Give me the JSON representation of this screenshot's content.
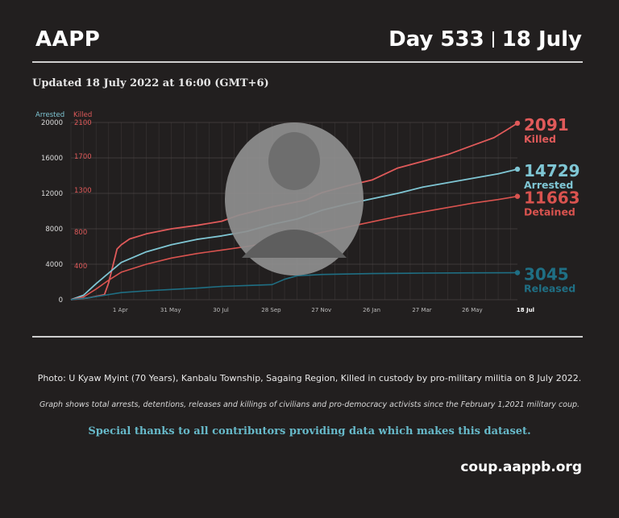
{
  "header": {
    "brand": "AAPP",
    "day": "Day 533",
    "date": "18 July"
  },
  "updated": "Updated 18 July 2022 at 16:00 (GMT+6)",
  "photo_caption": "Photo:  U Kyaw Myint (70 Years), Kanbalu Township, Sagaing Region, Killed in custody by pro-military militia on 8 July  2022.",
  "graph_caption": "Graph shows total arrests, detentions, releases and killings of civilians and pro-democracy activists since the February 1,2021 military coup.",
  "thanks": "Special thanks to all contributors providing data which makes this dataset.",
  "website": "coup.aappb.org",
  "colors": {
    "killed": "#e05a5a",
    "arrested": "#7fc6d4",
    "detained": "#d9534f",
    "released": "#1f6f84",
    "background": "#221f1f"
  },
  "chart_data": {
    "type": "line",
    "title": "",
    "left_axis_labels": [
      "Arrested",
      "Killed"
    ],
    "y_left_ticks": [
      0,
      4000,
      8000,
      12000,
      16000,
      20000
    ],
    "y_right_ticks": [
      400,
      800,
      1300,
      1700,
      2100
    ],
    "ylim_arrested": [
      0,
      20000
    ],
    "ylim_killed": [
      0,
      2100
    ],
    "x_tick_labels": [
      "1 Apr",
      "31 May",
      "30 Jul",
      "28 Sep",
      "27 Nov",
      "26 Jan",
      "27 Mar",
      "26 May",
      "18 Jul"
    ],
    "x_domain_days": [
      0,
      533
    ],
    "x_tick_days": [
      59,
      119,
      179,
      239,
      299,
      359,
      419,
      479,
      533
    ],
    "grid": true,
    "series": [
      {
        "name": "Killed",
        "axis": "killed",
        "final_value": "2091",
        "x_days": [
          0,
          20,
          40,
          45,
          50,
          55,
          60,
          70,
          90,
          120,
          150,
          180,
          200,
          240,
          280,
          300,
          330,
          360,
          390,
          420,
          450,
          480,
          505,
          520,
          533
        ],
        "values": [
          0,
          20,
          60,
          200,
          400,
          600,
          650,
          720,
          780,
          840,
          880,
          930,
          1000,
          1100,
          1180,
          1270,
          1350,
          1420,
          1560,
          1640,
          1720,
          1830,
          1920,
          2010,
          2091
        ]
      },
      {
        "name": "Arrested",
        "axis": "arrested",
        "final_value": "14729",
        "x_days": [
          0,
          15,
          30,
          45,
          60,
          90,
          120,
          150,
          180,
          210,
          240,
          270,
          300,
          330,
          360,
          390,
          420,
          450,
          480,
          510,
          533
        ],
        "values": [
          0,
          500,
          1800,
          3000,
          4200,
          5400,
          6200,
          6800,
          7200,
          7700,
          8500,
          9100,
          10100,
          10800,
          11400,
          12000,
          12700,
          13200,
          13700,
          14200,
          14729
        ]
      },
      {
        "name": "Detained",
        "axis": "arrested",
        "final_value": "11663",
        "x_days": [
          0,
          15,
          30,
          45,
          60,
          90,
          120,
          150,
          180,
          210,
          240,
          270,
          300,
          330,
          360,
          390,
          420,
          450,
          480,
          510,
          533
        ],
        "values": [
          0,
          300,
          1200,
          2200,
          3100,
          4000,
          4700,
          5200,
          5600,
          6000,
          6500,
          7000,
          7600,
          8200,
          8800,
          9400,
          9900,
          10400,
          10900,
          11300,
          11663
        ]
      },
      {
        "name": "Released",
        "axis": "arrested",
        "final_value": "3045",
        "x_days": [
          0,
          20,
          40,
          60,
          90,
          120,
          150,
          180,
          210,
          240,
          255,
          270,
          300,
          360,
          420,
          480,
          533
        ],
        "values": [
          0,
          200,
          500,
          800,
          1000,
          1150,
          1300,
          1500,
          1600,
          1700,
          2300,
          2700,
          2850,
          2950,
          3000,
          3030,
          3045
        ]
      }
    ]
  }
}
